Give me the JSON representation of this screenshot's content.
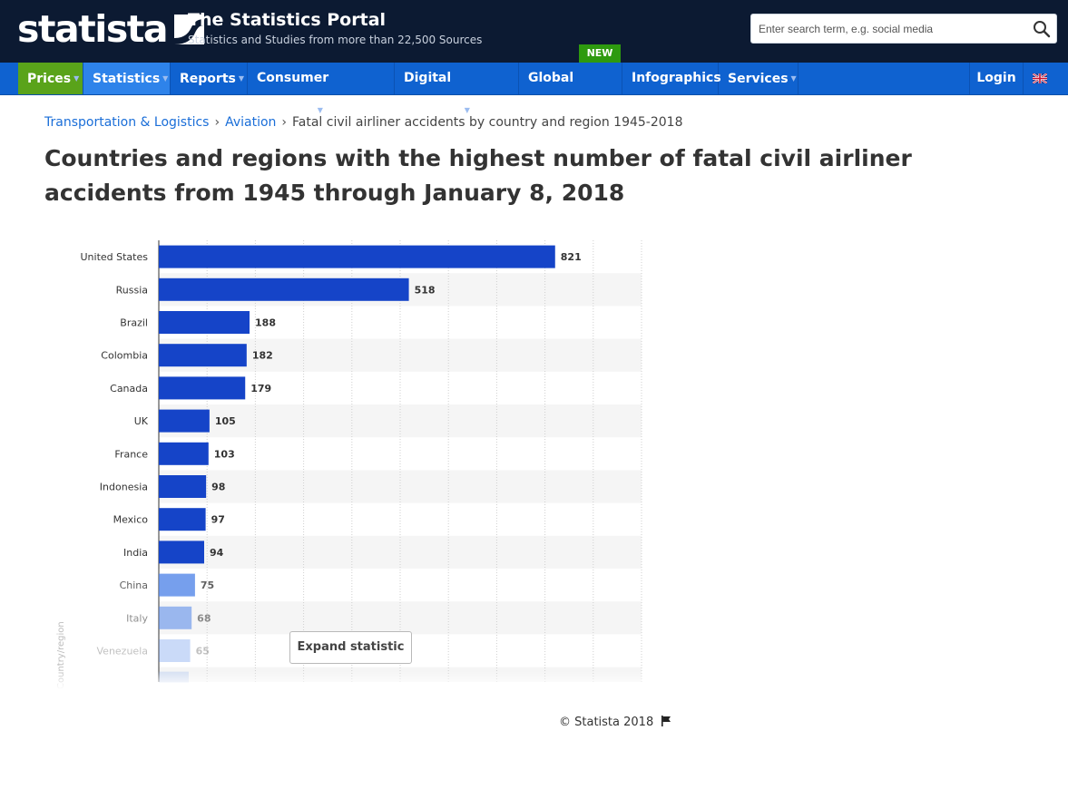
{
  "header": {
    "logo_text": "statista",
    "portal_title": "The Statistics Portal",
    "portal_subtitle": "Statistics and Studies from more than 22,500 Sources",
    "search_placeholder": "Enter search term, e.g. social media",
    "new_badge": "NEW"
  },
  "nav": {
    "items": [
      {
        "label": "Prices"
      },
      {
        "label": "Statistics"
      },
      {
        "label": "Reports"
      },
      {
        "label": "Consumer Markets"
      },
      {
        "label": "Digital Markets"
      },
      {
        "label": "Global Survey"
      },
      {
        "label": "Infographics"
      },
      {
        "label": "Services"
      }
    ],
    "login": "Login"
  },
  "breadcrumb": {
    "items": [
      "Transportation & Logistics",
      "Aviation"
    ],
    "current": "Fatal civil airliner accidents by country and region 1945-2018"
  },
  "page_title": "Countries and regions with the highest number of fatal civil airliner accidents from 1945 through January 8, 2018",
  "chart_data": {
    "type": "bar",
    "orientation": "horizontal",
    "categories": [
      "United States",
      "Russia",
      "Brazil",
      "Colombia",
      "Canada",
      "UK",
      "France",
      "Indonesia",
      "Mexico",
      "India",
      "China",
      "Italy",
      "Venezuela"
    ],
    "values": [
      821,
      518,
      188,
      182,
      179,
      105,
      103,
      98,
      97,
      94,
      75,
      68,
      65
    ],
    "ylabel": "Country/region",
    "xlim": [
      0,
      1000
    ],
    "grid": true,
    "colors": {
      "bar": "#1544c8",
      "bar_faded": "#4f84e8",
      "label": "#333333",
      "band": "#f5f5f5"
    }
  },
  "expand_button": "Expand statistic",
  "copyright": "© Statista 2018"
}
